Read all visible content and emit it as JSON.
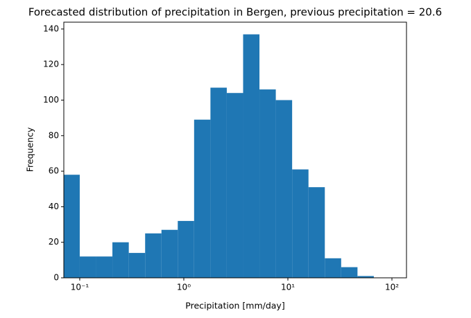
{
  "chart_data": {
    "type": "histogram",
    "title": "Forecasted distribution of precipitation in Bergen, previous precipitation = 20.6",
    "x_label": "Precipitation [mm/day]",
    "y_label": "Frequency",
    "x_scale": "log",
    "color": "#1f77b4",
    "bins": [
      0.0697,
      0.1,
      0.1436,
      0.206,
      0.296,
      0.425,
      0.61,
      0.875,
      1.256,
      1.803,
      2.588,
      3.715,
      5.333,
      7.656,
      10.99,
      15.78,
      22.65,
      32.51,
      46.67,
      66.99
    ],
    "counts": [
      58,
      12,
      12,
      20,
      14,
      25,
      27,
      32,
      89,
      107,
      104,
      137,
      106,
      100,
      61,
      51,
      11,
      6,
      1
    ],
    "xlim": [
      0.0703,
      138
    ],
    "xticks": [
      {
        "value": 0.1,
        "label": "10⁻¹"
      },
      {
        "value": 1,
        "label": "10⁰"
      },
      {
        "value": 10,
        "label": "10¹"
      },
      {
        "value": 100,
        "label": "10²"
      }
    ],
    "ylim": [
      0,
      143.85
    ],
    "yticks": [
      0,
      20,
      40,
      60,
      80,
      100,
      120,
      140
    ]
  }
}
